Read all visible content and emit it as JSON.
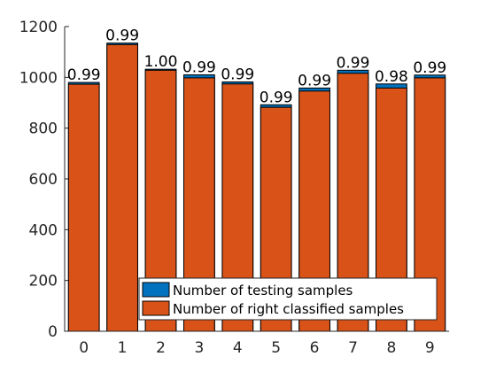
{
  "chart_data": {
    "type": "bar",
    "categories": [
      "0",
      "1",
      "2",
      "3",
      "4",
      "5",
      "6",
      "7",
      "8",
      "9"
    ],
    "series": [
      {
        "name": "Number of testing samples",
        "color": "#0072BD",
        "values": [
          980,
          1135,
          1032,
          1010,
          982,
          892,
          958,
          1028,
          974,
          1009
        ]
      },
      {
        "name": "Number of right classified samples",
        "color": "#D95319",
        "values": [
          973,
          1129,
          1028,
          998,
          974,
          882,
          946,
          1016,
          958,
          998
        ]
      }
    ],
    "data_labels": [
      "0.99",
      "0.99",
      "1.00",
      "0.99",
      "0.99",
      "0.99",
      "0.99",
      "0.99",
      "0.98",
      "0.99"
    ],
    "ylim": [
      0,
      1200
    ],
    "yticks": [
      0,
      200,
      400,
      600,
      800,
      1000,
      1200
    ],
    "grid": false,
    "legend_position": "bottom-right"
  }
}
